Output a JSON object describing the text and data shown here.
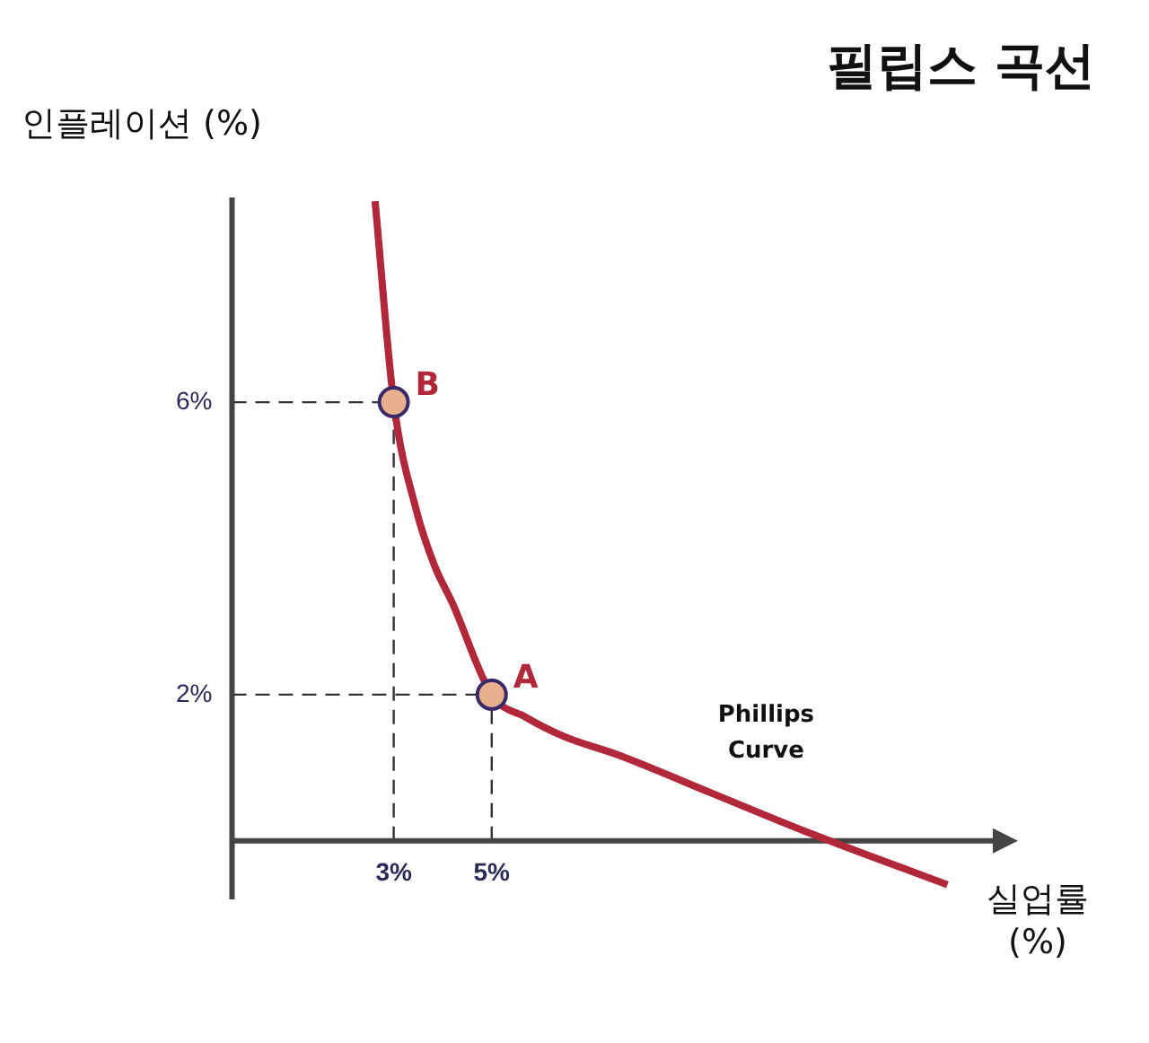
{
  "chart_data": {
    "type": "line",
    "title": "필립스 곡선",
    "xlabel": "실업률 (%)",
    "ylabel": "인플레이션 (%)",
    "xlim": [
      -0.3,
      15.3
    ],
    "ylim": [
      -0.8,
      8.8
    ],
    "xticks": [
      {
        "value": 3,
        "label": "3%"
      },
      {
        "value": 5,
        "label": "5%"
      }
    ],
    "yticks": [
      {
        "value": 2,
        "label": "2%"
      },
      {
        "value": 6,
        "label": "6%"
      }
    ],
    "grid": false,
    "legend": false,
    "marker": "none",
    "series": [
      {
        "name": "Phillips Curve",
        "color": "#b0283a",
        "x": [
          2.62,
          3,
          3.45,
          3.83,
          4.2,
          5,
          5.7,
          6.47,
          7.6,
          9.5,
          11.4,
          14.3
        ],
        "values": [
          8.75,
          6,
          4.55,
          3.77,
          3.25,
          2,
          1.69,
          1.43,
          1.17,
          0.65,
          0.13,
          -0.6
        ]
      },
      {
        "type": "scatter",
        "color": "#e8b08c",
        "marker": "circle",
        "x": [
          3,
          5
        ],
        "values": [
          6,
          2
        ]
      }
    ],
    "ref_lines": [
      {
        "axis": "x",
        "value": 3,
        "line_style": "dashed",
        "color": "#333333"
      },
      {
        "axis": "x",
        "value": 5,
        "line_style": "dashed",
        "color": "#333333"
      },
      {
        "axis": "y",
        "value": 6,
        "line_style": "dashed",
        "color": "#333333"
      },
      {
        "axis": "y",
        "value": 2,
        "line_style": "dashed",
        "color": "#333333"
      }
    ],
    "annotations": [
      {
        "text": "B",
        "x": 3,
        "y": 6
      },
      {
        "text": "A",
        "x": 5,
        "y": 2
      }
    ]
  }
}
